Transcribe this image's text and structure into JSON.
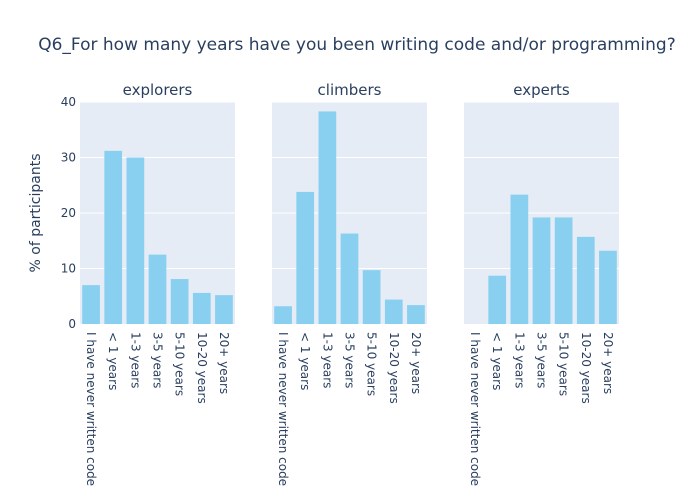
{
  "chart_data": {
    "type": "bar",
    "title": "Q6_For how many years have you been writing code and/or programming?",
    "ylabel": "% of participants",
    "ylim": [
      0,
      40
    ],
    "yticks": [
      0,
      10,
      20,
      30,
      40
    ],
    "grid": true,
    "bar_color": "#89cff0",
    "plot_bg": "#e5ecf6",
    "categories": [
      "I have never written code",
      "< 1 years",
      "1-3 years",
      "3-5 years",
      "5-10 years",
      "10-20 years",
      "20+ years"
    ],
    "panels": [
      {
        "name": "explorers",
        "values": [
          7.0,
          31.2,
          30.0,
          12.5,
          8.1,
          5.6,
          5.2
        ]
      },
      {
        "name": "climbers",
        "values": [
          3.2,
          23.8,
          38.3,
          16.3,
          9.7,
          4.4,
          3.4
        ]
      },
      {
        "name": "experts",
        "values": [
          0,
          8.7,
          23.3,
          19.2,
          19.2,
          15.7,
          13.2
        ]
      }
    ]
  }
}
